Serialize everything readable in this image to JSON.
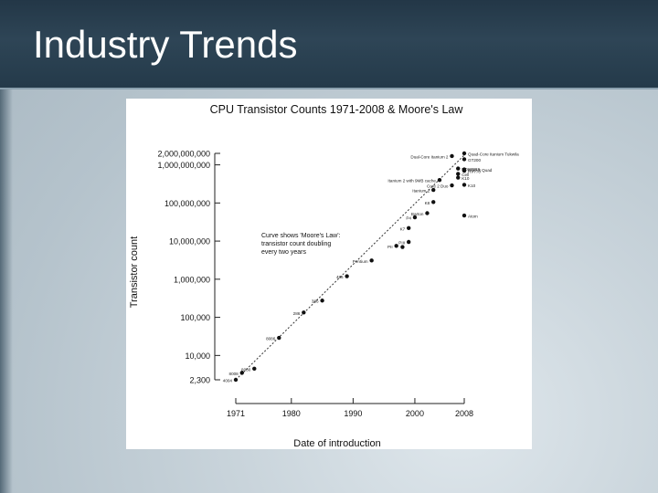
{
  "slide": {
    "title": "Industry Trends"
  },
  "colors": {
    "title_bar": "#2b4152",
    "point": "#111111",
    "trend": "#333333"
  },
  "chart_data": {
    "type": "scatter",
    "title": "CPU Transistor Counts 1971-2008 & Moore's Law",
    "xlabel": "Date of introduction",
    "ylabel": "Transistor count",
    "scale": "log",
    "xlim": [
      1971,
      2008
    ],
    "ylim": [
      2300,
      2000000000
    ],
    "x_ticks": [
      1971,
      1980,
      1990,
      2000,
      2008
    ],
    "y_ticks": [
      {
        "value": 2000000000,
        "label": "2,000,000,000"
      },
      {
        "value": 1000000000,
        "label": "1,000,000,000"
      },
      {
        "value": 100000000,
        "label": "100,000,000"
      },
      {
        "value": 10000000,
        "label": "10,000,000"
      },
      {
        "value": 1000000,
        "label": "1,000,000"
      },
      {
        "value": 100000,
        "label": "100,000"
      },
      {
        "value": 10000,
        "label": "10,000"
      },
      {
        "value": 2300,
        "label": "2,300"
      }
    ],
    "annotation": [
      "Curve shows 'Moore's Law':",
      "transistor count doubling",
      "every two years"
    ],
    "trend": {
      "x0": 1971,
      "y0": 2300,
      "x1": 2008,
      "y1": 1800000000
    },
    "points": [
      {
        "x": 1971,
        "y": 2300,
        "label": "4004"
      },
      {
        "x": 1972,
        "y": 3500,
        "label": "8008"
      },
      {
        "x": 1974,
        "y": 4500,
        "label": "8080"
      },
      {
        "x": 1978,
        "y": 29000,
        "label": "8086"
      },
      {
        "x": 1982,
        "y": 134000,
        "label": "286"
      },
      {
        "x": 1985,
        "y": 275000,
        "label": "386"
      },
      {
        "x": 1989,
        "y": 1200000,
        "label": "486"
      },
      {
        "x": 1993,
        "y": 3100000,
        "label": "Pentium"
      },
      {
        "x": 1997,
        "y": 7500000,
        "label": "PII"
      },
      {
        "x": 1998,
        "y": 7000000,
        "label": ""
      },
      {
        "x": 1999,
        "y": 9500000,
        "label": "PIII"
      },
      {
        "x": 1999,
        "y": 22000000,
        "label": "K7"
      },
      {
        "x": 2000,
        "y": 42000000,
        "label": "P4"
      },
      {
        "x": 2002,
        "y": 54000000,
        "label": "Barton"
      },
      {
        "x": 2003,
        "y": 106000000,
        "label": "K8"
      },
      {
        "x": 2003,
        "y": 220000000,
        "label": "Itanium 2"
      },
      {
        "x": 2004,
        "y": 400000000,
        "label": "Itanium 2 with 9MB cache"
      },
      {
        "x": 2006,
        "y": 290000000,
        "label": "Core 2 Duo"
      },
      {
        "x": 2006,
        "y": 1700000000,
        "label": "Dual-Core Itanium 2"
      },
      {
        "x": 2007,
        "y": 800000000,
        "label": "POWER6"
      },
      {
        "x": 2007,
        "y": 463000000,
        "label": "K10"
      },
      {
        "x": 2007,
        "y": 580000000,
        "label": "Cell"
      },
      {
        "x": 2008,
        "y": 47000000,
        "label": "Atom"
      },
      {
        "x": 2008,
        "y": 2000000000,
        "label": "Quad-Core Itanium Tukwila"
      },
      {
        "x": 2008,
        "y": 1400000000,
        "label": "GT200"
      },
      {
        "x": 2008,
        "y": 700000000,
        "label": "RV770"
      },
      {
        "x": 2008,
        "y": 760000000,
        "label": "Core 2 Quad"
      },
      {
        "x": 2008,
        "y": 300000000,
        "label": "K10"
      }
    ]
  }
}
